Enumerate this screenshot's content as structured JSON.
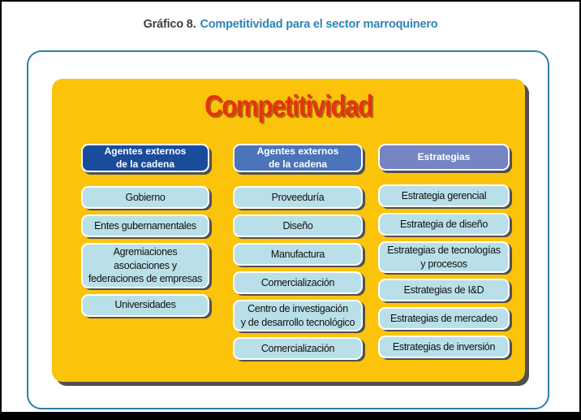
{
  "caption": {
    "prefix": "Gráfico 8.",
    "title": "Competitividad para el sector marroquinero"
  },
  "diagram": {
    "title": "Competitividad",
    "columns": [
      {
        "header": "Agentes externos\nde la cadena",
        "items": [
          "Gobierno",
          "Entes gubernamentales",
          "Agremiaciones\nasociaciones y\nfederaciones de empresas",
          "Universidades"
        ]
      },
      {
        "header": "Agentes externos\nde la cadena",
        "items": [
          "Proveeduría",
          "Diseño",
          "Manufactura",
          "Comercialización",
          "Centro de investigación\ny de desarrollo tecnológico",
          "Comercialización"
        ]
      },
      {
        "header": "Estrategias",
        "items": [
          "Estrategia gerencial",
          "Estrategia de diseño",
          "Estrategias de tecnologías\ny procesos",
          "Estrategias de I&D",
          "Estrategias de mercadeo",
          "Estrategias de inversión"
        ]
      }
    ]
  },
  "colors": {
    "panel_yellow": "#fcc30b",
    "title_red": "#e8320e",
    "header_dark_blue": "#1a4c9c",
    "header_medium_blue": "#4b74ba",
    "header_light_blue": "#7585c2",
    "item_cyan": "#b9e0e8",
    "frame_blue": "#2e7ea8",
    "caption_blue": "#2c85b8",
    "shadow_gray": "#4f5052"
  }
}
